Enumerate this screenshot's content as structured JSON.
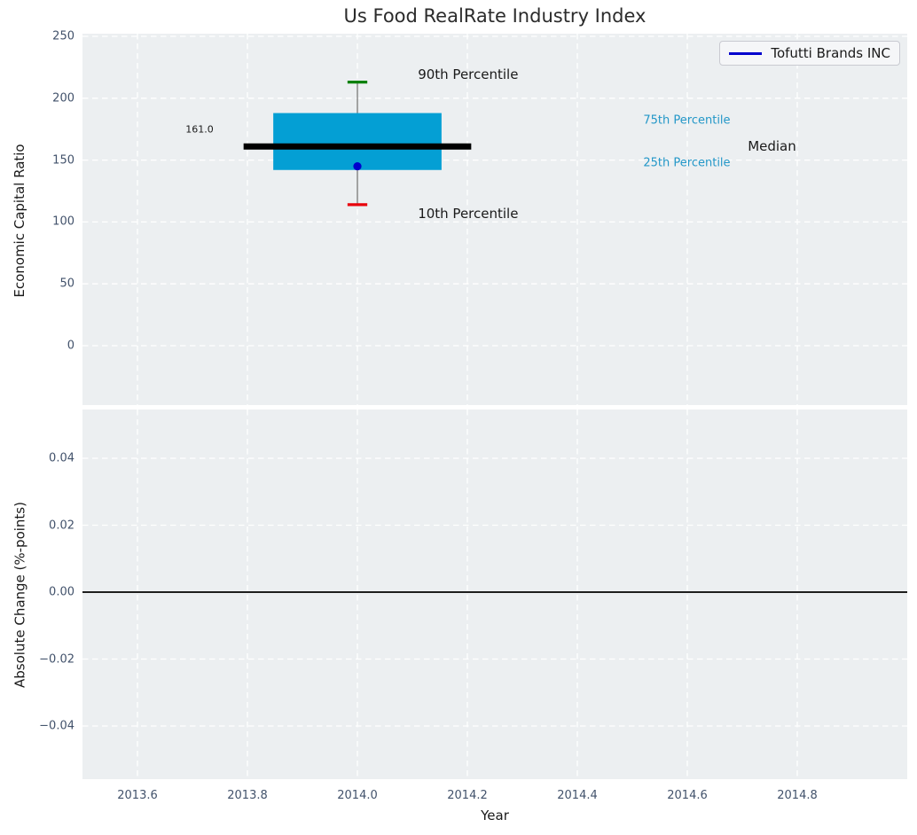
{
  "figure": {
    "title": "Us Food RealRate Industry Index"
  },
  "legend": {
    "label": "Tofutti Brands INC"
  },
  "xaxis": {
    "label": "Year",
    "xlim": [
      2013.5,
      2015.0
    ],
    "ticks": [
      2013.6,
      2013.8,
      2014.0,
      2014.2,
      2014.4,
      2014.6,
      2014.8
    ],
    "tick_labels": [
      "2013.6",
      "2013.8",
      "2014.0",
      "2014.2",
      "2014.4",
      "2014.6",
      "2014.8"
    ]
  },
  "colors": {
    "plot_bg": "#eceff1",
    "grid": "#ffffff",
    "box_fill": "#049fd4",
    "median_line": "#000000",
    "whisker": "#888888",
    "cap_90th": "#008000",
    "cap_10th": "#e8000b",
    "company_marker": "#0000cd",
    "legend_line": "#0000cd",
    "tick_label": "#42526b",
    "percentile_text": "#2397c8",
    "annotation_text": "#1a1a1a",
    "zero_line": "#000000"
  },
  "chart_data": [
    {
      "type": "boxplot",
      "panel": "top",
      "title": "Us Food RealRate Industry Index",
      "ylabel": "Economic Capital Ratio",
      "ylim": [
        -48,
        252
      ],
      "yticks": [
        0,
        50,
        100,
        150,
        200,
        250
      ],
      "ytick_labels": [
        "0",
        "50",
        "100",
        "150",
        "200",
        "250"
      ],
      "grid": true,
      "box": {
        "x": 2014.0,
        "p10": 114,
        "p25": 142,
        "median": 161,
        "p75": 188,
        "p90": 213,
        "box_width_years": 0.306,
        "median_line_width_years": 0.414,
        "cap_width_years": 0.036
      },
      "company_point": {
        "name": "Tofutti Brands INC",
        "x": 2014.0,
        "y": 145
      },
      "annotations": [
        {
          "id": "p90-label",
          "text": "90th Percentile",
          "x": 2014.11,
          "y": 219,
          "size": 15,
          "colorKey": "annotation_text",
          "align": "left"
        },
        {
          "id": "p10-label",
          "text": "10th Percentile",
          "x": 2014.11,
          "y": 107,
          "size": 15,
          "colorKey": "annotation_text",
          "align": "left"
        },
        {
          "id": "p75-label",
          "text": "75th Percentile",
          "x": 2014.52,
          "y": 182.3,
          "size": 13,
          "colorKey": "percentile_text",
          "align": "left"
        },
        {
          "id": "p25-label",
          "text": "25th Percentile",
          "x": 2014.52,
          "y": 147.9,
          "size": 13,
          "colorKey": "percentile_text",
          "align": "left"
        },
        {
          "id": "median-label",
          "text": "Median",
          "x": 2014.71,
          "y": 161.5,
          "size": 15,
          "colorKey": "annotation_text",
          "align": "left"
        },
        {
          "id": "median-value",
          "text": "161.0",
          "x": 2013.713,
          "y": 174.8,
          "size": 11,
          "colorKey": "annotation_text",
          "align": "center"
        }
      ]
    },
    {
      "type": "line",
      "panel": "bottom",
      "ylabel": "Absolute Change (%-points)",
      "ylim": [
        -0.056,
        0.0546
      ],
      "yticks": [
        -0.04,
        -0.02,
        0.0,
        0.02,
        0.04
      ],
      "ytick_labels": [
        "−0.04",
        "−0.02",
        "0.00",
        "0.02",
        "0.04"
      ],
      "grid": true,
      "zero_line_y": 0.0,
      "series": [
        {
          "name": "Tofutti Brands INC",
          "x": [],
          "y": []
        }
      ]
    }
  ]
}
